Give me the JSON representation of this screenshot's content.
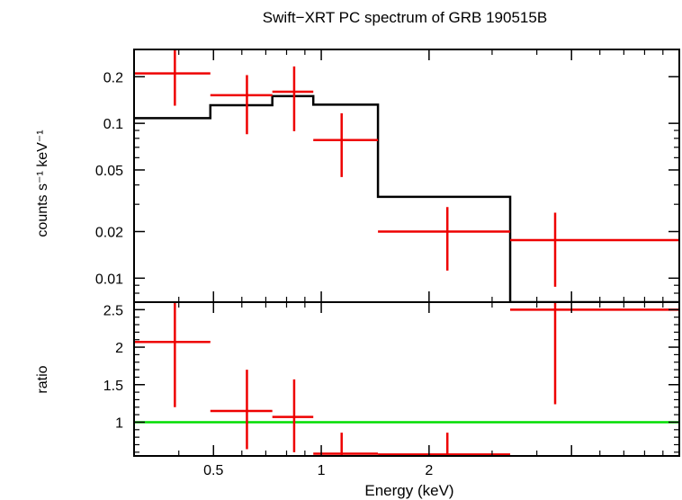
{
  "title": "Swift−XRT PC spectrum of GRB 190515B",
  "xlabel": "Energy (keV)",
  "colors": {
    "data": "#ee0000",
    "model": "#000000",
    "unity": "#00dd00",
    "frame": "#000000"
  },
  "chart_data": [
    {
      "type": "scatter",
      "panel": "spectrum",
      "ylabel": "counts s⁻¹ keV⁻¹",
      "xscale": "log",
      "yscale": "log",
      "xlim": [
        0.3,
        10
      ],
      "ylim": [
        0.007,
        0.3
      ],
      "x_ticks": [
        "0.5",
        "1",
        "2"
      ],
      "y_ticks": [
        "0.01",
        "0.02",
        "0.05",
        "0.1",
        "0.2"
      ],
      "series": [
        {
          "points": [
            {
              "x": 0.39,
              "xlo": 0.3,
              "xhi": 0.49,
              "y": 0.21,
              "ylo": 0.13,
              "yhi": 0.3
            },
            {
              "x": 0.62,
              "xlo": 0.49,
              "xhi": 0.73,
              "y": 0.152,
              "ylo": 0.085,
              "yhi": 0.205
            },
            {
              "x": 0.84,
              "xlo": 0.73,
              "xhi": 0.95,
              "y": 0.16,
              "ylo": 0.089,
              "yhi": 0.233
            },
            {
              "x": 1.14,
              "xlo": 0.95,
              "xhi": 1.44,
              "y": 0.078,
              "ylo": 0.045,
              "yhi": 0.116
            },
            {
              "x": 2.25,
              "xlo": 1.44,
              "xhi": 3.37,
              "y": 0.02,
              "ylo": 0.0112,
              "yhi": 0.0288
            },
            {
              "x": 4.5,
              "xlo": 3.37,
              "xhi": 10,
              "y": 0.0176,
              "ylo": 0.0088,
              "yhi": 0.0265
            }
          ]
        },
        {
          "steps": [
            {
              "xlo": 0.3,
              "xhi": 0.49,
              "y": 0.108
            },
            {
              "xlo": 0.49,
              "xhi": 0.73,
              "y": 0.131
            },
            {
              "xlo": 0.73,
              "xhi": 0.95,
              "y": 0.15
            },
            {
              "xlo": 0.95,
              "xhi": 1.44,
              "y": 0.132
            },
            {
              "xlo": 1.44,
              "xhi": 3.37,
              "y": 0.0335
            },
            {
              "xlo": 3.37,
              "xhi": 10,
              "y": 0.007
            }
          ]
        }
      ]
    },
    {
      "type": "scatter",
      "panel": "ratio",
      "ylabel": "ratio",
      "xscale": "log",
      "xlim": [
        0.3,
        10
      ],
      "ylim": [
        0.55,
        2.6
      ],
      "y_ticks": [
        "1",
        "1.5",
        "2",
        "2.5"
      ],
      "reference_y": 1,
      "series": [
        {
          "points": [
            {
              "x": 0.39,
              "xlo": 0.3,
              "xhi": 0.49,
              "y": 2.07,
              "ylo": 1.2,
              "yhi": 2.6
            },
            {
              "x": 0.62,
              "xlo": 0.49,
              "xhi": 0.73,
              "y": 1.15,
              "ylo": 0.64,
              "yhi": 1.7
            },
            {
              "x": 0.84,
              "xlo": 0.73,
              "xhi": 0.95,
              "y": 1.07,
              "ylo": 0.6,
              "yhi": 1.57
            },
            {
              "x": 1.14,
              "xlo": 0.95,
              "xhi": 1.44,
              "y": 0.58,
              "ylo": 0.55,
              "yhi": 0.86
            },
            {
              "x": 2.25,
              "xlo": 1.44,
              "xhi": 3.37,
              "y": 0.57,
              "ylo": 0.55,
              "yhi": 0.86
            },
            {
              "x": 4.5,
              "xlo": 3.37,
              "xhi": 10,
              "y": 2.5,
              "ylo": 1.24,
              "yhi": 2.6
            }
          ]
        }
      ]
    }
  ]
}
